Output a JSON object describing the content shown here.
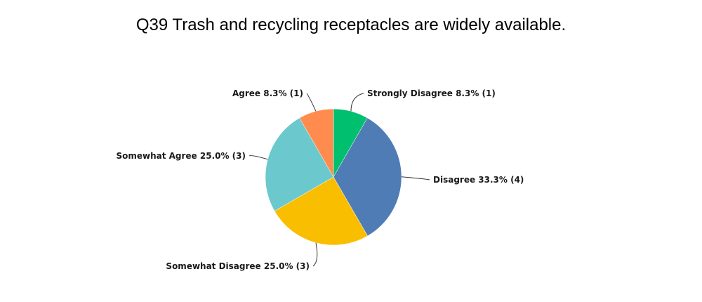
{
  "chart_data": {
    "type": "pie",
    "title": "Q39 Trash and recycling receptacles are widely available.",
    "slices": [
      {
        "name": "Strongly Disagree",
        "percent": 8.3,
        "count": 1,
        "label": "Strongly Disagree 8.3% (1)",
        "color": "#00bf6f"
      },
      {
        "name": "Disagree",
        "percent": 33.3,
        "count": 4,
        "label": "Disagree 33.3% (4)",
        "color": "#507cb6"
      },
      {
        "name": "Somewhat Disagree",
        "percent": 25.0,
        "count": 3,
        "label": "Somewhat Disagree 25.0% (3)",
        "color": "#f9be00"
      },
      {
        "name": "Somewhat Agree",
        "percent": 25.0,
        "count": 3,
        "label": "Somewhat Agree 25.0% (3)",
        "color": "#6bc8cd"
      },
      {
        "name": "Agree",
        "percent": 8.3,
        "count": 1,
        "label": "Agree 8.3% (1)",
        "color": "#ff8b4f"
      }
    ]
  }
}
